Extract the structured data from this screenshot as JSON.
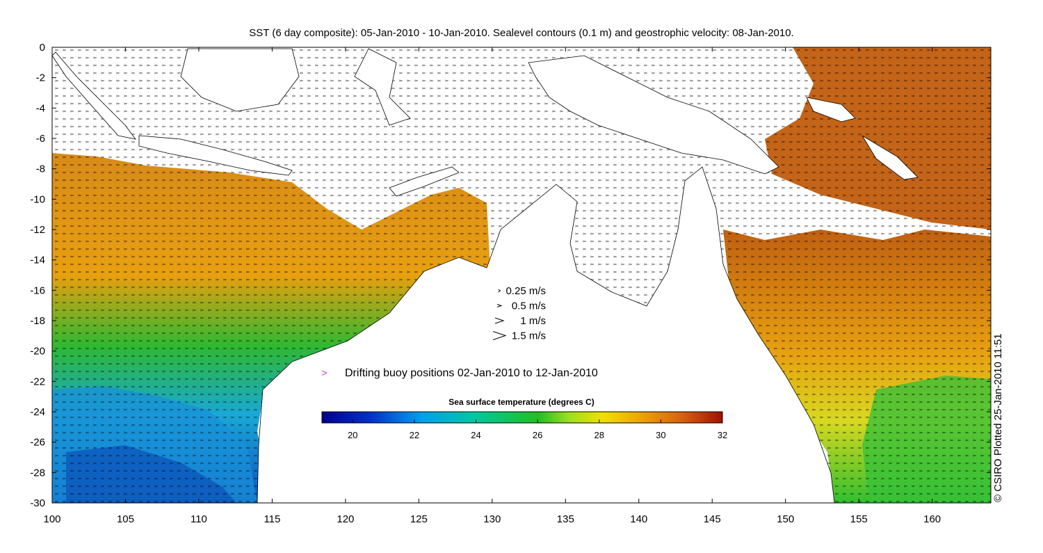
{
  "title": "SST (6 day composite): 05-Jan-2010 - 10-Jan-2010. Sealevel contours (0.1 m) and geostrophic velocity: 08-Jan-2010.",
  "credit": "© CSIRO Plotted 25-Jan-2010 11:51",
  "x_axis": {
    "ticks": [
      "100",
      "105",
      "110",
      "115",
      "120",
      "125",
      "130",
      "135",
      "140",
      "145",
      "150",
      "155",
      "160"
    ],
    "range": [
      100,
      164
    ]
  },
  "y_axis": {
    "ticks": [
      "0",
      "-2",
      "-4",
      "-6",
      "-8",
      "-10",
      "-12",
      "-14",
      "-16",
      "-18",
      "-20",
      "-22",
      "-24",
      "-26",
      "-28",
      "-30"
    ],
    "range": [
      -30,
      0
    ]
  },
  "velocity_legend": [
    {
      "label": "0.25 m/s",
      "speed": 0.25
    },
    {
      "label": "0.5 m/s",
      "speed": 0.5
    },
    {
      "label": "1 m/s",
      "speed": 1
    },
    {
      "label": "1.5 m/s",
      "speed": 1.5
    }
  ],
  "buoy_legend": {
    "symbol": ">",
    "label": "Drifting buoy positions 02-Jan-2010 to 12-Jan-2010",
    "color": "#e040e0"
  },
  "colorbar": {
    "title": "Sea surface temperature (degrees C)",
    "range": [
      19,
      32
    ],
    "ticks": [
      "20",
      "22",
      "24",
      "26",
      "28",
      "30",
      "32"
    ]
  },
  "colors": {
    "land": "#ffffff",
    "coast": "#000000",
    "contour": "#ffffff",
    "warm": "#d2691e",
    "cold": "#1e6fd0"
  }
}
